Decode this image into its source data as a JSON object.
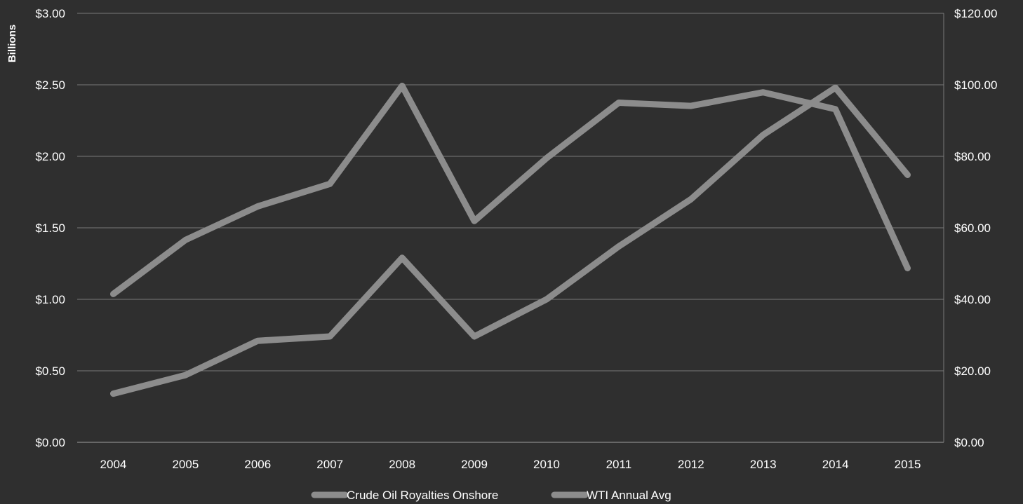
{
  "chart_data": {
    "type": "line",
    "title": "",
    "y_left_label": "Billions",
    "categories": [
      "2004",
      "2005",
      "2006",
      "2007",
      "2008",
      "2009",
      "2010",
      "2011",
      "2012",
      "2013",
      "2014",
      "2015"
    ],
    "y_left": {
      "ticks": [
        "$0.00",
        "$0.50",
        "$1.00",
        "$1.50",
        "$2.00",
        "$2.50",
        "$3.00"
      ],
      "range": [
        0,
        3
      ]
    },
    "y_right": {
      "ticks": [
        "$0.00",
        "$20.00",
        "$40.00",
        "$60.00",
        "$80.00",
        "$100.00",
        "$120.00"
      ],
      "range": [
        0,
        120
      ]
    },
    "series": [
      {
        "name": "Crude Oil Royalties Onshore",
        "axis": "left",
        "values": [
          0.34,
          0.47,
          0.71,
          0.74,
          1.29,
          0.74,
          1.0,
          1.37,
          1.7,
          2.15,
          2.48,
          1.87
        ]
      },
      {
        "name": "WTI Annual Avg",
        "axis": "right",
        "values": [
          41.5,
          56.6,
          66.0,
          72.3,
          99.7,
          61.9,
          79.5,
          95.0,
          94.1,
          97.9,
          93.2,
          48.7
        ]
      }
    ],
    "legend_position": "bottom",
    "gridlines": true,
    "colors": {
      "background": "#2f2f2f",
      "gridline": "#7a7a7a",
      "series_line": "#8c8c8c",
      "text": "#ffffff"
    }
  }
}
